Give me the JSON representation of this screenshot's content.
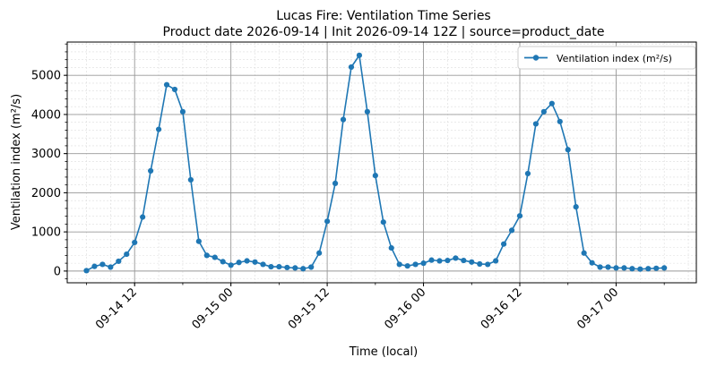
{
  "chart_data": {
    "type": "line",
    "title": "Lucas Fire: Ventilation Time Series",
    "subtitle": "Product date 2026-09-14 | Init 2026-09-14 12Z | source=product_date",
    "xlabel": "Time (local)",
    "ylabel": "Ventilation index (m²/s)",
    "x_start": "2026-09-14 06:00",
    "x_step_hours": 1,
    "xlim": [
      "2026-09-14 03:36",
      "2026-09-17 10:00"
    ],
    "ylim": [
      -300,
      5850
    ],
    "xticks": [
      {
        "time": "2026-09-14 12:00",
        "label": "09-14 12"
      },
      {
        "time": "2026-09-15 00:00",
        "label": "09-15 00"
      },
      {
        "time": "2026-09-15 12:00",
        "label": "09-15 12"
      },
      {
        "time": "2026-09-16 00:00",
        "label": "09-16 00"
      },
      {
        "time": "2026-09-16 12:00",
        "label": "09-16 12"
      },
      {
        "time": "2026-09-17 00:00",
        "label": "09-17 00"
      }
    ],
    "yticks": [
      0,
      1000,
      2000,
      3000,
      4000,
      5000
    ],
    "grid": true,
    "legend_position": "top-right",
    "series": [
      {
        "name": "Ventilation index (m²/s)",
        "color": "#1f77b4",
        "marker": "circle",
        "values": [
          10,
          120,
          170,
          100,
          250,
          430,
          730,
          1380,
          2560,
          3620,
          4760,
          4640,
          4070,
          2330,
          760,
          400,
          350,
          240,
          150,
          220,
          260,
          230,
          170,
          110,
          110,
          90,
          80,
          60,
          100,
          460,
          1270,
          2240,
          3870,
          5210,
          5510,
          4070,
          2440,
          1250,
          590,
          170,
          130,
          170,
          200,
          280,
          260,
          270,
          330,
          270,
          230,
          180,
          170,
          260,
          690,
          1040,
          1410,
          2490,
          3760,
          4070,
          4280,
          3820,
          3100,
          1640,
          460,
          210,
          100,
          100,
          80,
          80,
          60,
          50,
          60,
          70,
          80
        ]
      }
    ]
  }
}
